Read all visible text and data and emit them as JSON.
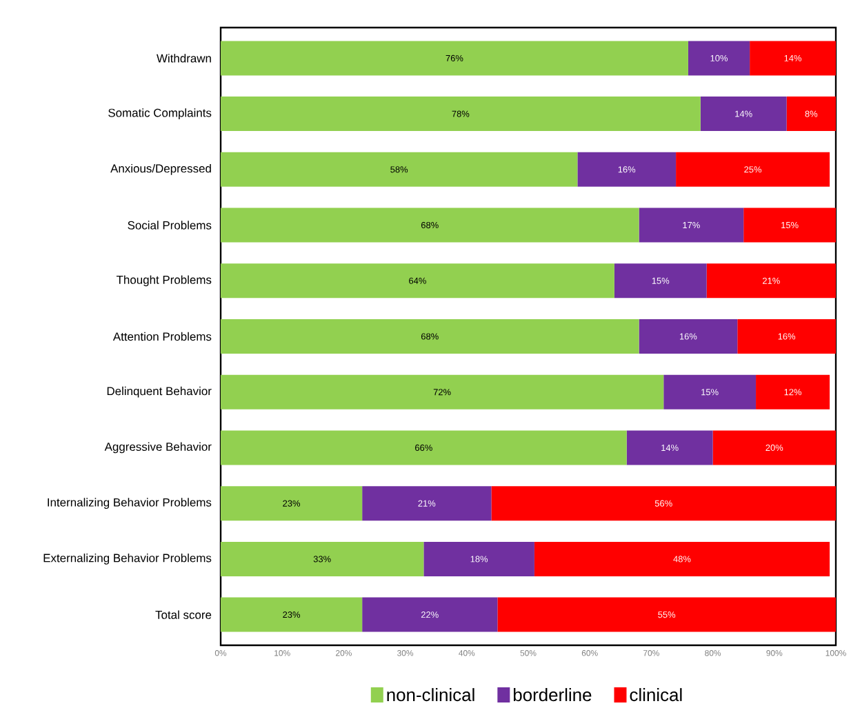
{
  "chart_data": {
    "type": "bar",
    "orientation": "horizontal",
    "stacked": true,
    "categories": [
      "Withdrawn",
      "Somatic Complaints",
      "Anxious/Depressed",
      "Social Problems",
      "Thought Problems",
      "Attention Problems",
      "Delinquent Behavior",
      "Aggressive Behavior",
      "Internalizing Behavior Problems",
      "Externalizing Behavior Problems",
      "Total score"
    ],
    "series": [
      {
        "name": "non-clinical",
        "color": "#92d050",
        "values": [
          76,
          78,
          58,
          68,
          64,
          68,
          72,
          66,
          23,
          33,
          23
        ],
        "value_labels": [
          "76%",
          "78%",
          "58%",
          "68%",
          "64%",
          "68%",
          "72%",
          "66%",
          "23%",
          "33%",
          "23%"
        ]
      },
      {
        "name": "borderline",
        "color": "#7030a0",
        "values": [
          10,
          14,
          16,
          17,
          15,
          16,
          15,
          14,
          21,
          18,
          22
        ],
        "value_labels": [
          "10%",
          "14%",
          "16%",
          "17%",
          "15%",
          "16%",
          "15%",
          "14%",
          "21%",
          "18%",
          "22%"
        ]
      },
      {
        "name": "clinical",
        "color": "#ff0000",
        "values": [
          14,
          8,
          25,
          15,
          21,
          16,
          12,
          20,
          56,
          48,
          55
        ],
        "value_labels": [
          "14%",
          "8%",
          "25%",
          "15%",
          "21%",
          "16%",
          "12%",
          "20%",
          "56%",
          "48%",
          "55%"
        ]
      }
    ],
    "xlim": [
      0,
      100
    ],
    "xticks": [
      {
        "value": 0,
        "label": "0%"
      },
      {
        "value": 10,
        "label": "10%"
      },
      {
        "value": 20,
        "label": "20%"
      },
      {
        "value": 30,
        "label": "30%"
      },
      {
        "value": 40,
        "label": "40%"
      },
      {
        "value": 50,
        "label": "50%"
      },
      {
        "value": 60,
        "label": "60%"
      },
      {
        "value": 70,
        "label": "70%"
      },
      {
        "value": 80,
        "label": "80%"
      },
      {
        "value": 90,
        "label": "90%"
      },
      {
        "value": 100,
        "label": "100%"
      }
    ],
    "grid": false,
    "legend": "bottom"
  }
}
